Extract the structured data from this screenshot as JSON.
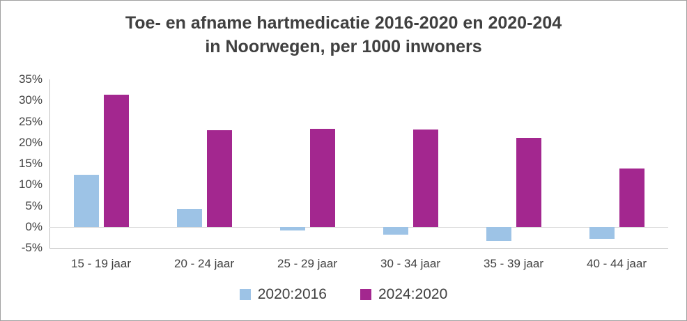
{
  "title": {
    "line1": "Toe- en afname hartmedicatie 2016-2020 en 2020-204",
    "line2": "in Noorwegen, per 1000 inwoners"
  },
  "chart_data": {
    "type": "bar",
    "title": "Toe- en afname hartmedicatie 2016-2020 en 2020-204 in Noorwegen, per 1000 inwoners",
    "categories": [
      "15 - 19 jaar",
      "20 - 24 jaar",
      "25 - 29 jaar",
      "30 - 34 jaar",
      "35 - 39 jaar",
      "40 - 44 jaar"
    ],
    "series": [
      {
        "name": "2020:2016",
        "color": "#9dc3e6",
        "values": [
          12.3,
          4.2,
          -0.8,
          -1.9,
          -3.3,
          -2.9
        ]
      },
      {
        "name": "2024:2020",
        "color": "#a3278f",
        "values": [
          31.4,
          22.9,
          23.3,
          23.1,
          21.1,
          13.8
        ]
      }
    ],
    "ylim": [
      -5,
      35
    ],
    "ytick_step": 5,
    "ytick_labels": [
      "35%",
      "30%",
      "25%",
      "20%",
      "15%",
      "10%",
      "5%",
      "0%",
      "-5%"
    ],
    "xlabel": "",
    "ylabel": "",
    "grid": false,
    "legend_position": "bottom"
  },
  "colors": {
    "text": "#404040",
    "axis_line": "#bfbfbf",
    "zero_line": "#d9d9d9",
    "frame_border": "#a0a0a0",
    "background": "#ffffff"
  }
}
